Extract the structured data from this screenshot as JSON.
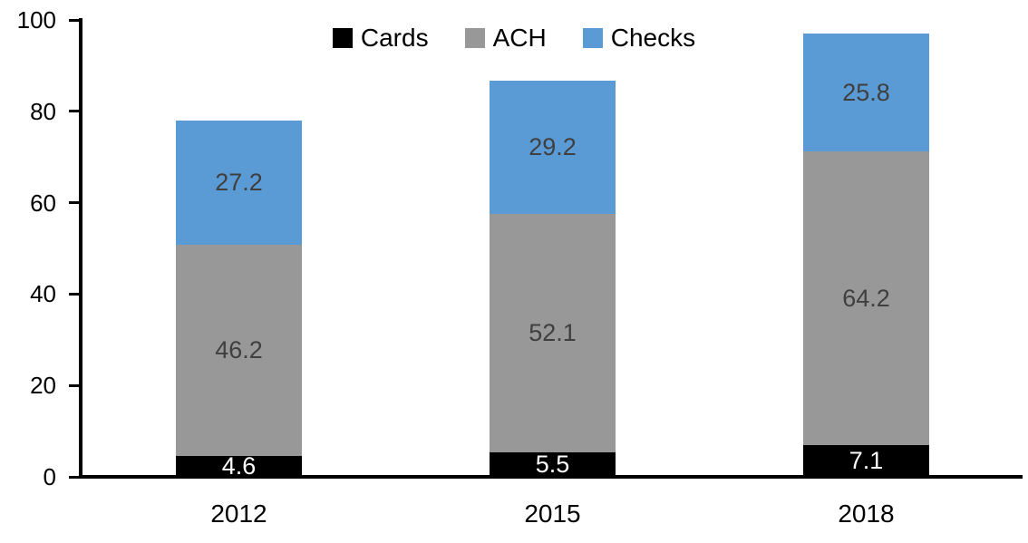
{
  "chart_data": {
    "type": "bar",
    "stacked": true,
    "title": "",
    "xlabel": "",
    "ylabel": "",
    "categories": [
      "2012",
      "2015",
      "2018"
    ],
    "series": [
      {
        "name": "Cards",
        "color": "#000000",
        "label_color": "#ffffff",
        "values": [
          4.6,
          5.5,
          7.1
        ]
      },
      {
        "name": "ACH",
        "color": "#989898",
        "label_color": "#3f3f3f",
        "values": [
          46.2,
          52.1,
          64.2
        ]
      },
      {
        "name": "Checks",
        "color": "#5b9bd5",
        "label_color": "#3f3f3f",
        "values": [
          27.2,
          29.2,
          25.8
        ]
      }
    ],
    "totals": [
      78.0,
      86.8,
      97.1
    ],
    "ylim": [
      0,
      100
    ],
    "yticks": [
      0,
      20,
      40,
      60,
      80,
      100
    ],
    "grid": false,
    "legend_position": "top-center",
    "data_labels": true,
    "axis_color": "#000000",
    "background_color": "#ffffff"
  }
}
